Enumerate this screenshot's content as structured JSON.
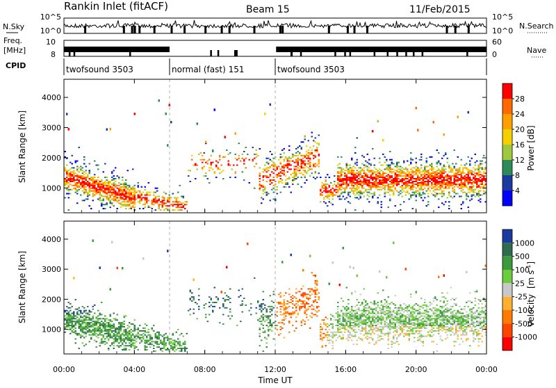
{
  "header": {
    "station": "Rankin Inlet (fitACF)",
    "beam": "Beam 15",
    "date": "11/Feb/2015"
  },
  "left_labels": {
    "nsky": "N.Sky",
    "freq_line1": "Freq.",
    "freq_line2": "[MHz]",
    "cpid": "CPID"
  },
  "right_labels": {
    "nsearch": "N.Search",
    "nave": "Nave"
  },
  "strips": {
    "nsky_ticks": [
      "10^5",
      "10^0"
    ],
    "nsearch_ticks": [
      "10^5",
      "10^0"
    ],
    "freq_ticks": [
      "10",
      "8"
    ],
    "nave_ticks": [
      "60",
      "0"
    ]
  },
  "cpid_segments": [
    {
      "label": "twofsound 3503",
      "start": 0,
      "end": 6
    },
    {
      "label": "normal (fast) 151",
      "start": 6,
      "end": 12
    },
    {
      "label": "twofsound 3503",
      "start": 12,
      "end": 24
    }
  ],
  "chart_data": [
    {
      "type": "heatmap",
      "name": "power-panel",
      "ylabel": "Slant Range [km]",
      "ylim": [
        180,
        4600
      ],
      "yticks": [
        1000,
        2000,
        3000,
        4000
      ],
      "xlim": [
        0,
        24
      ],
      "colorbar": {
        "label": "Power [dB]",
        "tick_labels": [
          "28",
          "24",
          "20",
          "16",
          "12",
          "8",
          "4"
        ],
        "colors": [
          "#ff0000",
          "#ff6a00",
          "#ffa000",
          "#f4d000",
          "#9ec83e",
          "#2e8b57",
          "#1a3aa0",
          "#0000ff"
        ]
      }
    },
    {
      "type": "heatmap",
      "name": "velocity-panel",
      "ylabel": "Slant Range [km]",
      "ylim": [
        180,
        4600
      ],
      "yticks": [
        1000,
        2000,
        3000,
        4000
      ],
      "xlim": [
        0,
        24
      ],
      "xlabel": "Time UT",
      "xtick_labels": [
        "00:00",
        "04:00",
        "08:00",
        "12:00",
        "16:00",
        "20:00",
        "00:00"
      ],
      "colorbar": {
        "label": "Velocity",
        "label_unit": "[m s",
        "label_sup": "-1",
        "label_end": "]",
        "tick_labels": [
          "1000",
          "500",
          "100",
          "25",
          "-25",
          "-100",
          "-500",
          "-1000"
        ],
        "colors": [
          "#1a3aa0",
          "#2e6b4f",
          "#3c9a3c",
          "#6ccc3c",
          "#c8c8c8",
          "#ffb030",
          "#ff7a00",
          "#ff4400",
          "#ff0000"
        ]
      }
    }
  ]
}
